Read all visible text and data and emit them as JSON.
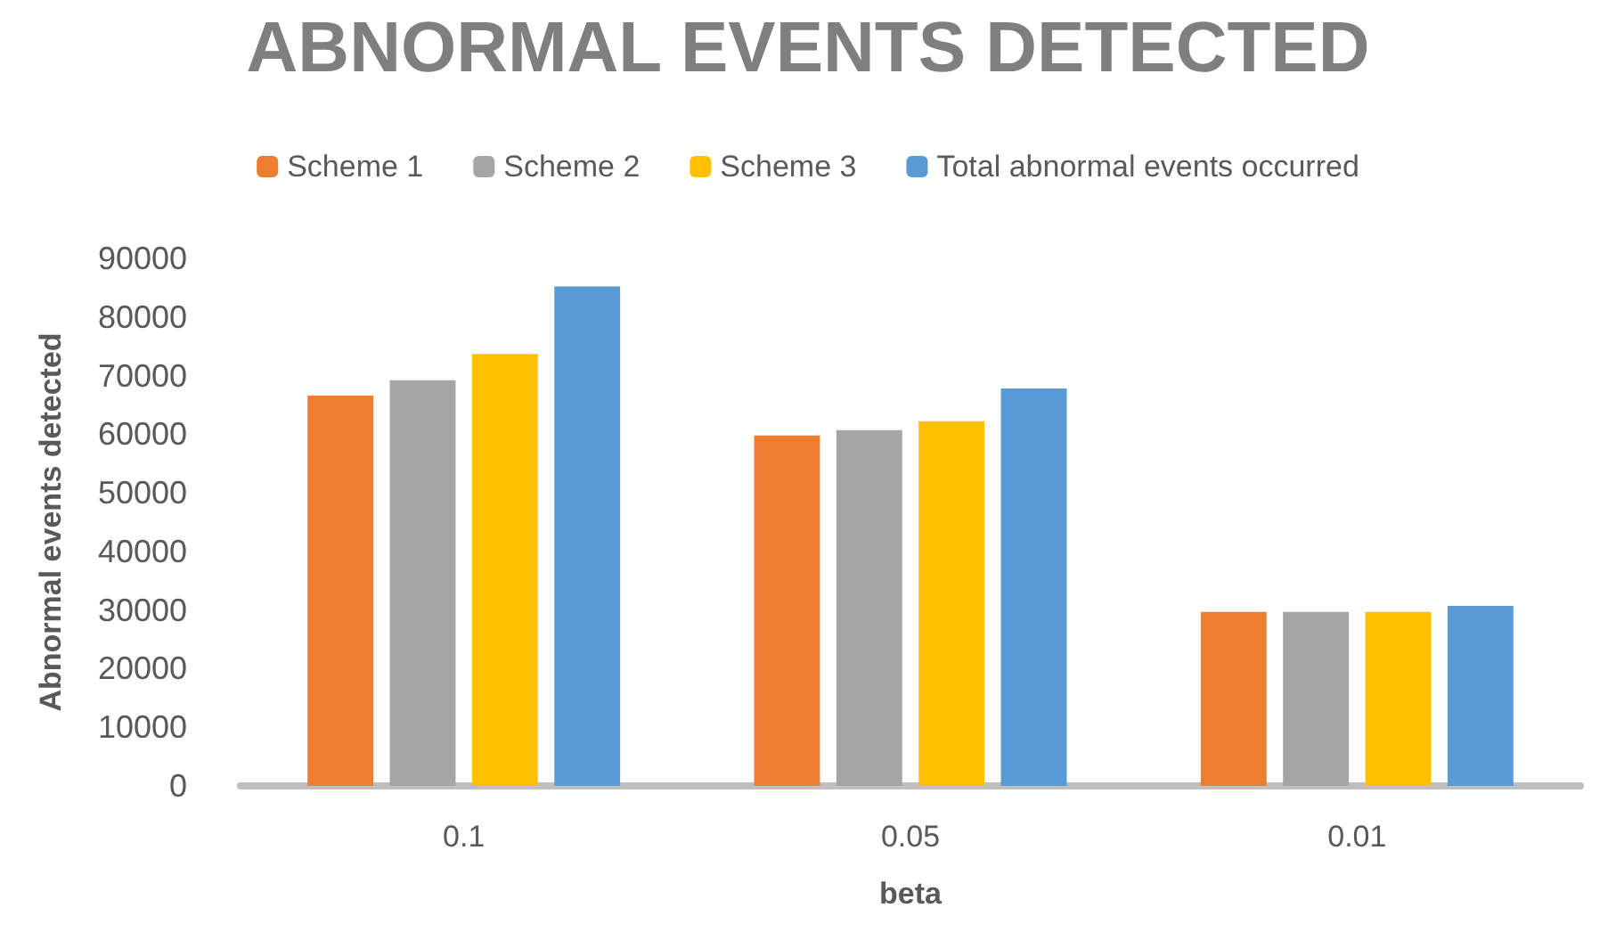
{
  "chart_data": {
    "type": "bar",
    "title": "ABNORMAL EVENTS DETECTED",
    "xlabel": "beta",
    "ylabel": "Abnormal events detected",
    "categories": [
      "0.1",
      "0.05",
      "0.01"
    ],
    "series": [
      {
        "name": "Scheme 1",
        "color": "#ed7d31",
        "values": [
          66600,
          59800,
          29700
        ]
      },
      {
        "name": "Scheme 2",
        "color": "#a5a5a5",
        "values": [
          69200,
          60700,
          29700
        ]
      },
      {
        "name": "Scheme 3",
        "color": "#ffc000",
        "values": [
          73700,
          62200,
          29700
        ]
      },
      {
        "name": "Total abnormal events occurred",
        "color": "#5b9bd5",
        "values": [
          85200,
          67800,
          30700
        ]
      }
    ],
    "ylim": [
      0,
      90000
    ],
    "yticks": [
      0,
      10000,
      20000,
      30000,
      40000,
      50000,
      60000,
      70000,
      80000,
      90000
    ],
    "grid": false,
    "legend": "top"
  }
}
